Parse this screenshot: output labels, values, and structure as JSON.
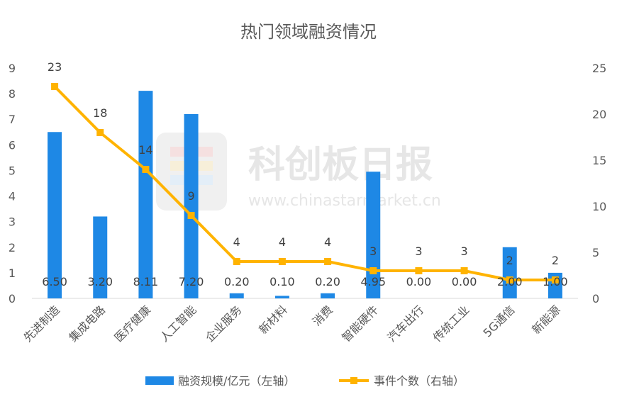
{
  "chart_data": {
    "type": "bar",
    "title": "热门领域融资情况",
    "categories": [
      "先进制造",
      "集成电路",
      "医疗健康",
      "人工智能",
      "企业服务",
      "新材料",
      "消费",
      "智能硬件",
      "汽车出行",
      "传统工业",
      "5G通信",
      "新能源"
    ],
    "series": [
      {
        "name": "融资规模/亿元（左轴）",
        "type": "bar",
        "axis": "left",
        "color": "#1e88e5",
        "values": [
          6.5,
          3.2,
          8.11,
          7.2,
          0.2,
          0.1,
          0.2,
          4.95,
          0.0,
          0.0,
          2.0,
          1.0
        ],
        "labels": [
          "6.50",
          "3.20",
          "8.11",
          "7.20",
          "0.20",
          "0.10",
          "0.20",
          "4.95",
          "0.00",
          "0.00",
          "2.00",
          "1.00"
        ]
      },
      {
        "name": "事件个数（右轴）",
        "type": "line",
        "axis": "right",
        "color": "#ffb300",
        "values": [
          23,
          18,
          14,
          9,
          4,
          4,
          4,
          3,
          3,
          3,
          2,
          2
        ]
      }
    ],
    "y_left": {
      "min": 0,
      "max": 9,
      "ticks": [
        "0",
        "1",
        "2",
        "3",
        "4",
        "5",
        "6",
        "7",
        "8",
        "9"
      ]
    },
    "y_right": {
      "min": 0,
      "max": 25,
      "ticks": [
        "0",
        "5",
        "10",
        "15",
        "20",
        "25"
      ]
    },
    "grid": false,
    "legend_position": "bottom"
  },
  "watermark": {
    "brand": "科创板日报",
    "url": "www.chinastarmarket.cn"
  }
}
